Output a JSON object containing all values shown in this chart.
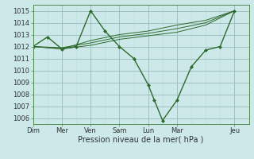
{
  "background_color": "#cce8e8",
  "grid_major_color": "#99bbbb",
  "grid_minor_color": "#bbdddd",
  "line_color": "#2d6a2d",
  "marker_color": "#2d6a2d",
  "xlabel": "Pression niveau de la mer( hPa )",
  "ylim": [
    1005.5,
    1015.5
  ],
  "yticks": [
    1006,
    1007,
    1008,
    1009,
    1010,
    1011,
    1012,
    1013,
    1014,
    1015
  ],
  "day_labels": [
    "Dim",
    "Mer",
    "Ven",
    "Sam",
    "Lun",
    "Mar",
    "Jeu"
  ],
  "day_positions": [
    0,
    14,
    28,
    42,
    56,
    70,
    98
  ],
  "xlim": [
    0,
    105
  ],
  "series0": {
    "x": [
      0,
      7,
      14,
      21,
      28,
      35,
      42,
      49,
      56,
      59,
      63,
      70,
      77,
      84,
      91,
      98
    ],
    "y": [
      1012.0,
      1012.8,
      1011.8,
      1012.0,
      1015.0,
      1013.3,
      1012.0,
      1011.0,
      1008.8,
      1007.5,
      1005.8,
      1007.5,
      1010.3,
      1011.7,
      1012.0,
      1015.0
    ]
  },
  "series1": {
    "x": [
      0,
      14,
      28,
      42,
      56,
      70,
      84,
      98
    ],
    "y": [
      1012.0,
      1011.8,
      1012.5,
      1013.0,
      1013.3,
      1013.8,
      1014.2,
      1015.0
    ]
  },
  "series2": {
    "x": [
      0,
      14,
      28,
      42,
      56,
      70,
      84,
      98
    ],
    "y": [
      1012.0,
      1011.9,
      1012.3,
      1012.8,
      1013.1,
      1013.5,
      1014.0,
      1015.0
    ]
  },
  "series3": {
    "x": [
      0,
      14,
      28,
      42,
      56,
      70,
      84,
      98
    ],
    "y": [
      1012.0,
      1011.8,
      1012.1,
      1012.6,
      1012.9,
      1013.2,
      1013.8,
      1015.0
    ]
  }
}
